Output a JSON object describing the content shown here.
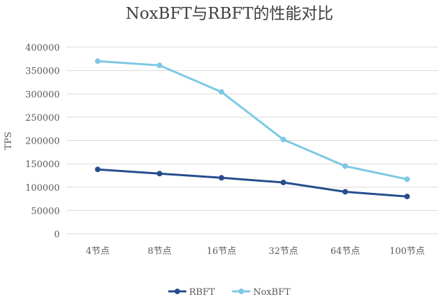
{
  "chart_data": {
    "type": "line",
    "title": "NoxBFT与RBFT的性能对比",
    "xlabel": "",
    "ylabel": "TPS",
    "categories": [
      "4节点",
      "8节点",
      "16节点",
      "32节点",
      "64节点",
      "100节点"
    ],
    "ylim": [
      0,
      400000
    ],
    "yticks": [
      0,
      50000,
      100000,
      150000,
      200000,
      250000,
      300000,
      350000,
      400000
    ],
    "grid": true,
    "legend": "bottom",
    "series": [
      {
        "name": "RBFT",
        "color": "#264d8c",
        "values": [
          138000,
          129000,
          120000,
          110000,
          90000,
          80000
        ]
      },
      {
        "name": "NoxBFT",
        "color": "#7ec8e3",
        "values": [
          370000,
          361000,
          304000,
          202000,
          145000,
          117000
        ]
      }
    ]
  }
}
